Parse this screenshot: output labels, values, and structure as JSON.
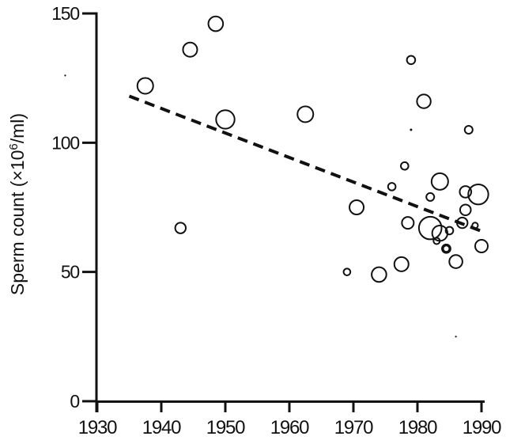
{
  "figure": {
    "background": "#ffffff",
    "ink_color": "#111111"
  },
  "chart_data": {
    "type": "scatter",
    "title": "",
    "xlabel": "",
    "ylabel": "Sperm count (×10⁶/ml)",
    "ylabel_parts": {
      "pre": "Sperm count (×10",
      "sup": "6",
      "post": "/ml)"
    },
    "x_ticks": [
      "1930",
      "1940",
      "1950",
      "1960",
      "1970",
      "1980",
      "1990"
    ],
    "x_tick_years": [
      1930,
      1940,
      1950,
      1960,
      1970,
      1980,
      1990
    ],
    "y_ticks": [
      "0",
      "50",
      "100",
      "150"
    ],
    "y_tick_values": [
      0,
      50,
      100,
      150
    ],
    "xlim": [
      1930,
      1990.5
    ],
    "ylim": [
      0,
      150
    ],
    "grid": false,
    "legend_position": "none",
    "marker_note": "open circles, area proportional to study size; one bold ring; tiny filled dots",
    "trendline": {
      "style": "dashed",
      "x1_year": 1935,
      "y1_value": 118,
      "x2_year": 1990.3,
      "y2_value": 65.5
    },
    "points": [
      {
        "year": 1925,
        "count": 126,
        "size": 1.1,
        "style": "speck"
      },
      {
        "year": 1937.5,
        "count": 122,
        "size": 10,
        "style": "open"
      },
      {
        "year": 1943,
        "count": 67,
        "size": 6.7,
        "style": "open"
      },
      {
        "year": 1944.5,
        "count": 136,
        "size": 9,
        "style": "open"
      },
      {
        "year": 1948.5,
        "count": 146,
        "size": 9.3,
        "style": "open"
      },
      {
        "year": 1950,
        "count": 109,
        "size": 11.7,
        "style": "open"
      },
      {
        "year": 1962.5,
        "count": 111,
        "size": 10,
        "style": "open"
      },
      {
        "year": 1969,
        "count": 50,
        "size": 4.3,
        "style": "open"
      },
      {
        "year": 1970.5,
        "count": 75,
        "size": 9,
        "style": "open"
      },
      {
        "year": 1974,
        "count": 49,
        "size": 9.3,
        "style": "open"
      },
      {
        "year": 1976,
        "count": 83,
        "size": 4.8,
        "style": "open"
      },
      {
        "year": 1977.5,
        "count": 53,
        "size": 9,
        "style": "open"
      },
      {
        "year": 1978,
        "count": 91,
        "size": 4.8,
        "style": "open"
      },
      {
        "year": 1978.5,
        "count": 69,
        "size": 7.5,
        "style": "open"
      },
      {
        "year": 1979,
        "count": 132,
        "size": 5.3,
        "style": "open"
      },
      {
        "year": 1979,
        "count": 105,
        "size": 1.5,
        "style": "dot"
      },
      {
        "year": 1981,
        "count": 116,
        "size": 8.7,
        "style": "open"
      },
      {
        "year": 1982,
        "count": 79,
        "size": 5,
        "style": "open"
      },
      {
        "year": 1982,
        "count": 67,
        "size": 14.3,
        "style": "open"
      },
      {
        "year": 1983,
        "count": 62,
        "size": 4,
        "style": "open"
      },
      {
        "year": 1983.5,
        "count": 85,
        "size": 10.5,
        "style": "open"
      },
      {
        "year": 1983.5,
        "count": 65,
        "size": 9.7,
        "style": "open"
      },
      {
        "year": 1984.5,
        "count": 59,
        "size": 4.7,
        "style": "bold"
      },
      {
        "year": 1985,
        "count": 66,
        "size": 4.8,
        "style": "open"
      },
      {
        "year": 1986,
        "count": 54,
        "size": 8.3,
        "style": "open"
      },
      {
        "year": 1986,
        "count": 25,
        "size": 1.1,
        "style": "speck"
      },
      {
        "year": 1987,
        "count": 69,
        "size": 6.7,
        "style": "open"
      },
      {
        "year": 1987.5,
        "count": 81,
        "size": 7.3,
        "style": "open"
      },
      {
        "year": 1987.5,
        "count": 74,
        "size": 6.8,
        "style": "open"
      },
      {
        "year": 1988,
        "count": 105,
        "size": 5,
        "style": "open"
      },
      {
        "year": 1989,
        "count": 68,
        "size": 3.6,
        "style": "open"
      },
      {
        "year": 1989.5,
        "count": 80,
        "size": 12.7,
        "style": "open"
      },
      {
        "year": 1990,
        "count": 60,
        "size": 8,
        "style": "open"
      }
    ]
  }
}
